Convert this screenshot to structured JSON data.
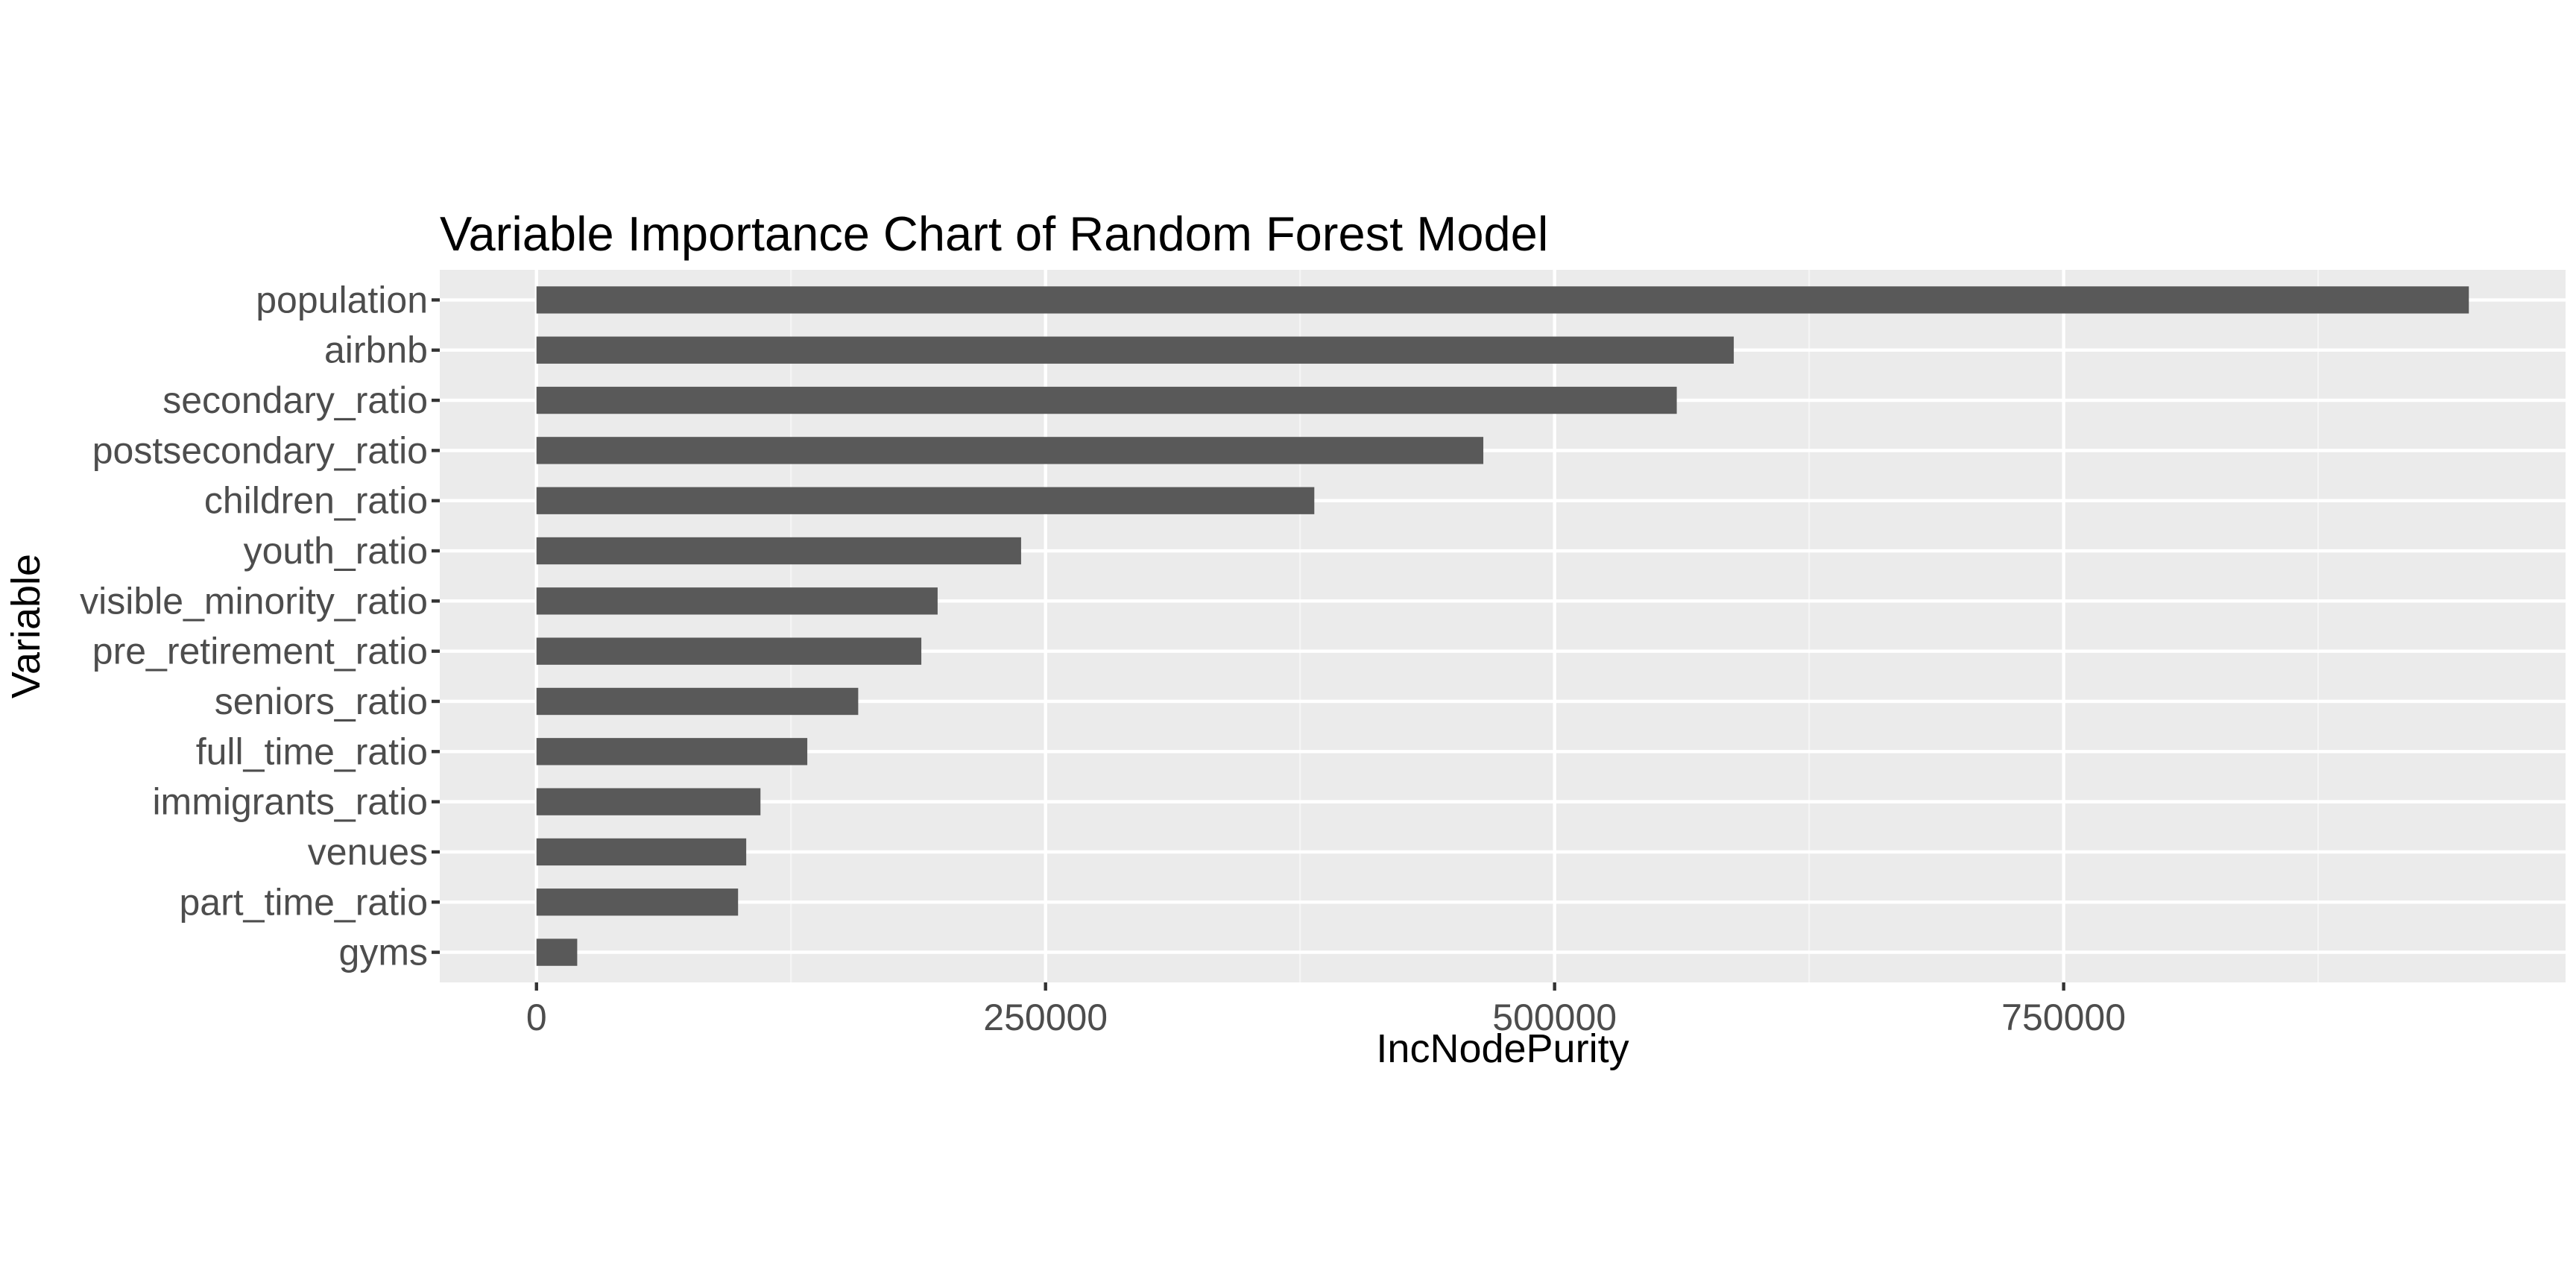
{
  "chart_data": {
    "type": "bar",
    "orientation": "horizontal",
    "title": "Variable Importance Chart of Random Forest Model",
    "xlabel": "IncNodePurity",
    "ylabel": "Variable",
    "categories": [
      "population",
      "airbnb",
      "secondary_ratio",
      "postsecondary_ratio",
      "children_ratio",
      "youth_ratio",
      "visible_minority_ratio",
      "pre_retirement_ratio",
      "seniors_ratio",
      "full_time_ratio",
      "immigrants_ratio",
      "venues",
      "part_time_ratio",
      "gyms"
    ],
    "values": [
      949000,
      588000,
      560000,
      465000,
      382000,
      238000,
      197000,
      189000,
      158000,
      133000,
      110000,
      103000,
      99000,
      20000
    ],
    "xlim": [
      -47500,
      996500
    ],
    "xticks": [
      0,
      250000,
      500000,
      750000
    ],
    "xtick_labels": [
      "0",
      "250000",
      "500000",
      "750000"
    ],
    "grid": true,
    "legend": "none",
    "colors": {
      "bar": "#595959",
      "panel_background": "#ebebeb",
      "grid_major": "#ffffff",
      "grid_minor": "#f5f5f5",
      "tick_label": "#4d4d4d",
      "text": "#000000"
    }
  }
}
